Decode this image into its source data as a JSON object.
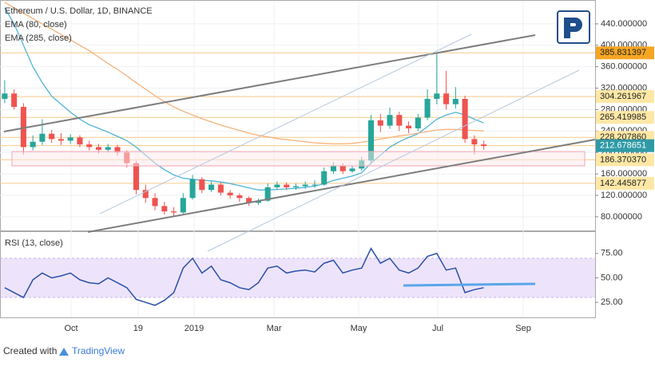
{
  "chart_data": {
    "type": "candlestick",
    "title": "Ethereum / U.S. Dollar, 1D, BINANCE",
    "xlim": [
      0,
      63.35
    ],
    "xticks": [
      {
        "value": 7.57,
        "label": "Oct"
      },
      {
        "value": 14.7,
        "label": "19"
      },
      {
        "value": 20.66,
        "label": "2019"
      },
      {
        "value": 29.17,
        "label": "Mar"
      },
      {
        "value": 38.18,
        "label": "May"
      },
      {
        "value": 46.6,
        "label": "Jul"
      },
      {
        "value": 55.7,
        "label": "Sep"
      }
    ],
    "ylim": [
      53,
      483
    ],
    "yticks": [
      {
        "value": 80,
        "label": "80.000000"
      },
      {
        "value": 120,
        "label": "120.000000"
      },
      {
        "value": 160,
        "label": "160.000000"
      },
      {
        "value": 200,
        "label": "200.000000"
      },
      {
        "value": 240,
        "label": "240.000000"
      },
      {
        "value": 280,
        "label": "280.000000"
      },
      {
        "value": 320,
        "label": "320.000000"
      },
      {
        "value": 360,
        "label": "360.000000"
      },
      {
        "value": 400,
        "label": "400.000000"
      },
      {
        "value": 440,
        "label": "440.000000"
      }
    ],
    "up_color": "#26a69a",
    "down_color": "#ef5350",
    "open": [
      300,
      310,
      285,
      210,
      220,
      235,
      225,
      222,
      228,
      215,
      210,
      205,
      210,
      200,
      180,
      130,
      115,
      100,
      90,
      88,
      115,
      150,
      130,
      140,
      125,
      120,
      115,
      106,
      110,
      135,
      140,
      135,
      137,
      140,
      140,
      165,
      175,
      165,
      170,
      185,
      260,
      250,
      270,
      250,
      245,
      265,
      300,
      310,
      290,
      300,
      225,
      215
    ],
    "close": [
      310,
      285,
      210,
      220,
      235,
      225,
      222,
      228,
      215,
      210,
      205,
      210,
      200,
      180,
      130,
      115,
      100,
      90,
      88,
      115,
      150,
      130,
      140,
      125,
      120,
      115,
      106,
      110,
      135,
      140,
      135,
      137,
      140,
      140,
      165,
      175,
      165,
      170,
      185,
      260,
      250,
      270,
      250,
      245,
      265,
      300,
      310,
      290,
      300,
      225,
      215,
      212
    ],
    "high": [
      335,
      318,
      292,
      232,
      262,
      242,
      236,
      234,
      232,
      222,
      216,
      216,
      214,
      204,
      184,
      140,
      124,
      108,
      98,
      124,
      158,
      154,
      146,
      144,
      130,
      124,
      118,
      114,
      142,
      146,
      144,
      142,
      146,
      148,
      172,
      182,
      180,
      176,
      192,
      270,
      272,
      284,
      276,
      258,
      272,
      318,
      385,
      352,
      322,
      306,
      232,
      222
    ],
    "low": [
      292,
      280,
      196,
      204,
      214,
      218,
      214,
      216,
      210,
      204,
      198,
      200,
      194,
      172,
      122,
      106,
      92,
      84,
      82,
      86,
      112,
      124,
      126,
      120,
      114,
      108,
      100,
      102,
      108,
      132,
      130,
      130,
      132,
      134,
      138,
      160,
      160,
      162,
      166,
      180,
      238,
      244,
      240,
      236,
      240,
      260,
      290,
      280,
      282,
      218,
      196,
      205
    ],
    "series": [
      {
        "name": "EMA (80, close)",
        "color": "#4fb3d9",
        "values": [
          470,
          440,
          400,
          360,
          330,
          305,
          290,
          275,
          262,
          252,
          245,
          238,
          230,
          222,
          210,
          195,
          180,
          168,
          158,
          152,
          150,
          148,
          147,
          145,
          142,
          138,
          134,
          130,
          130,
          131,
          132,
          133,
          135,
          137,
          142,
          148,
          152,
          156,
          162,
          180,
          195,
          210,
          220,
          228,
          235,
          248,
          262,
          270,
          275,
          270,
          262,
          255
        ]
      },
      {
        "name": "EMA (285, close)",
        "color": "#f5b27a",
        "values": [
          480,
          470,
          460,
          450,
          440,
          430,
          420,
          410,
          400,
          390,
          378,
          366,
          355,
          343,
          330,
          318,
          306,
          295,
          285,
          277,
          270,
          263,
          257,
          251,
          246,
          241,
          236,
          232,
          229,
          226,
          224,
          222,
          220,
          218,
          217,
          216,
          216,
          217,
          219,
          222,
          225,
          228,
          231,
          233,
          236,
          239,
          242,
          243,
          243,
          242,
          241,
          240
        ]
      }
    ],
    "levels": [
      {
        "value": 385.831397,
        "label": "385.831397",
        "color": "#f6a623"
      },
      {
        "value": 304.261967,
        "label": "304.261967",
        "color": "#ffe8a6"
      },
      {
        "value": 265.419985,
        "label": "265.419985",
        "color": "#ffe8a6"
      },
      {
        "value": 228.20786,
        "label": "228.207860",
        "color": "#ffe8a6"
      },
      {
        "value": 212.678651,
        "label": "212.678651",
        "color": "#2f9aa6"
      },
      {
        "value": 186.37037,
        "label": "186.370370",
        "color": "#ffe8a6"
      },
      {
        "value": 142.445877,
        "label": "142.445877",
        "color": "#ffe8a6"
      }
    ],
    "rsi": {
      "title": "RSI (13, close)",
      "color": "#2a4fa8",
      "ylim": [
        9.7,
        96.8
      ],
      "yticks": [
        {
          "value": 25,
          "label": "25.00"
        },
        {
          "value": 50,
          "label": "50.00"
        },
        {
          "value": 75,
          "label": "75.00"
        }
      ],
      "band": [
        30,
        70
      ],
      "values": [
        40,
        35,
        30,
        48,
        55,
        50,
        52,
        55,
        48,
        45,
        44,
        50,
        45,
        40,
        28,
        25,
        22,
        27,
        35,
        60,
        70,
        55,
        62,
        48,
        45,
        40,
        38,
        45,
        60,
        62,
        55,
        57,
        58,
        56,
        65,
        68,
        55,
        58,
        60,
        80,
        65,
        70,
        58,
        55,
        60,
        72,
        75,
        58,
        60,
        35,
        38,
        40
      ]
    },
    "footer": {
      "text": "Created with",
      "brand": "TradingView"
    }
  }
}
